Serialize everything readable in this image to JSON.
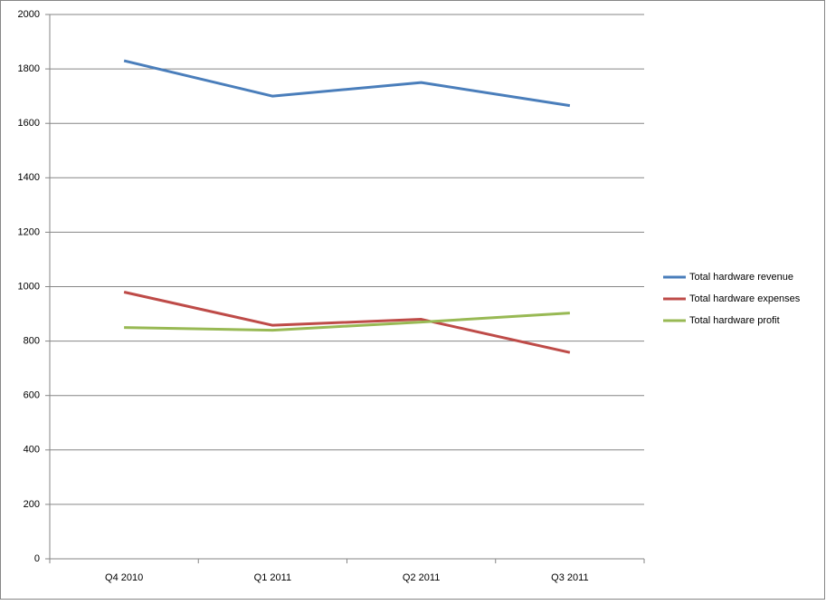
{
  "chart_data": {
    "type": "line",
    "categories": [
      "Q4 2010",
      "Q1 2011",
      "Q2 2011",
      "Q3 2011"
    ],
    "series": [
      {
        "name": "Total hardware revenue",
        "color": "#4a7ebb",
        "values": [
          1830,
          1700,
          1750,
          1665
        ]
      },
      {
        "name": "Total hardware expenses",
        "color": "#be4b48",
        "values": [
          980,
          858,
          880,
          758
        ]
      },
      {
        "name": "Total hardware profit",
        "color": "#98b954",
        "values": [
          850,
          840,
          870,
          903
        ]
      }
    ],
    "ylim": [
      0,
      2000
    ],
    "yticks": [
      0,
      200,
      400,
      600,
      800,
      1000,
      1200,
      1400,
      1600,
      1800,
      2000
    ],
    "grid": true,
    "legend": "right"
  }
}
